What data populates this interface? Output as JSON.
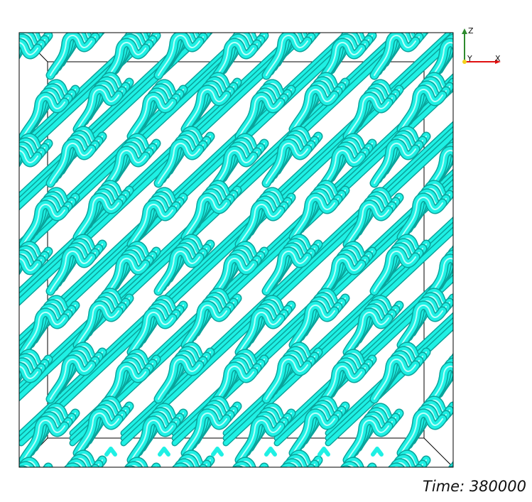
{
  "time": {
    "label": "Time: 380000"
  },
  "axes_widget": {
    "z_label": "Z",
    "y_label": "Y",
    "x_label": "X",
    "z_color": "#2e8b2e",
    "x_color": "#e01010",
    "y_color": "#f2d21a"
  },
  "render": {
    "surface_color": "#1ff0e4",
    "shadow_color": "#0aa39b",
    "highlight_color": "#b8fffa",
    "box_color": "#000000"
  }
}
